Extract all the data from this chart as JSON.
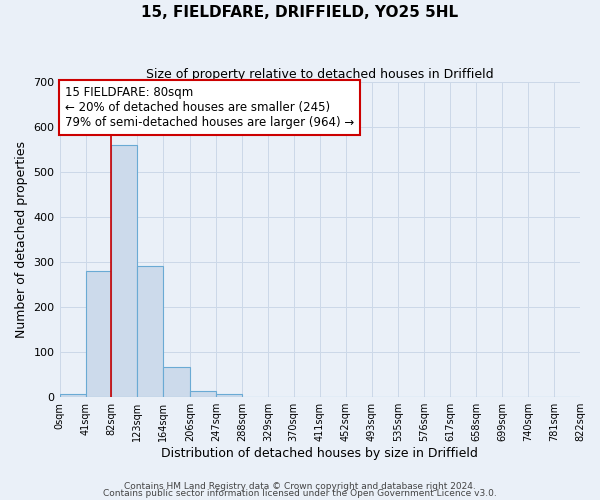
{
  "title": "15, FIELDFARE, DRIFFIELD, YO25 5HL",
  "subtitle": "Size of property relative to detached houses in Driffield",
  "xlabel": "Distribution of detached houses by size in Driffield",
  "ylabel": "Number of detached properties",
  "bar_values": [
    7,
    280,
    560,
    290,
    68,
    14,
    8,
    0,
    0,
    0,
    0,
    0,
    0,
    0,
    0,
    0,
    0,
    0,
    0,
    0
  ],
  "bin_edges": [
    0,
    41,
    82,
    123,
    164,
    206,
    247,
    288,
    329,
    370,
    411,
    452,
    493,
    535,
    576,
    617,
    658,
    699,
    740,
    781,
    822
  ],
  "tick_labels": [
    "0sqm",
    "41sqm",
    "82sqm",
    "123sqm",
    "164sqm",
    "206sqm",
    "247sqm",
    "288sqm",
    "329sqm",
    "370sqm",
    "411sqm",
    "452sqm",
    "493sqm",
    "535sqm",
    "576sqm",
    "617sqm",
    "658sqm",
    "699sqm",
    "740sqm",
    "781sqm",
    "822sqm"
  ],
  "bar_color": "#ccdaeb",
  "bar_edge_color": "#6aaad4",
  "vline_x": 82,
  "vline_color": "#cc0000",
  "ylim": [
    0,
    700
  ],
  "yticks": [
    0,
    100,
    200,
    300,
    400,
    500,
    600,
    700
  ],
  "annotation_title": "15 FIELDFARE: 80sqm",
  "annotation_line1": "← 20% of detached houses are smaller (245)",
  "annotation_line2": "79% of semi-detached houses are larger (964) →",
  "annotation_box_color": "#ffffff",
  "annotation_box_edge": "#cc0000",
  "grid_color": "#ccd8e8",
  "background_color": "#eaf0f8",
  "footer1": "Contains HM Land Registry data © Crown copyright and database right 2024.",
  "footer2": "Contains public sector information licensed under the Open Government Licence v3.0."
}
